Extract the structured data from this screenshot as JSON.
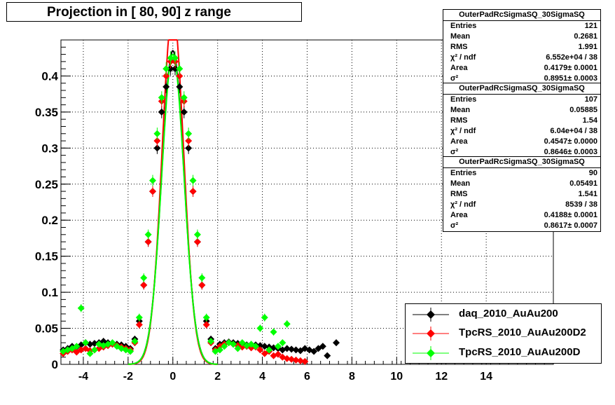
{
  "title": "Projection in [  80,  90] z range",
  "stats_boxes": [
    {
      "name": "OuterPadRcSigmaSQ_30SigmaSQ",
      "rows": [
        {
          "k": "Entries",
          "v": "121"
        },
        {
          "k": "Mean",
          "v": "0.2681"
        },
        {
          "k": "RMS",
          "v": "1.991"
        },
        {
          "k": "χ² / ndf",
          "v": "6.552e+04 / 38"
        },
        {
          "k": "Area",
          "v": "0.4179± 0.0001"
        },
        {
          "k": "σ²",
          "v": "0.8951± 0.0003"
        }
      ]
    },
    {
      "name": "OuterPadRcSigmaSQ_30SigmaSQ",
      "rows": [
        {
          "k": "Entries",
          "v": "107"
        },
        {
          "k": "Mean",
          "v": "0.05885"
        },
        {
          "k": "RMS",
          "v": "1.54"
        },
        {
          "k": "χ² / ndf",
          "v": "6.04e+04 / 38"
        },
        {
          "k": "Area",
          "v": "0.4547± 0.0000"
        },
        {
          "k": "σ²",
          "v": "0.8646± 0.0003"
        }
      ]
    },
    {
      "name": "OuterPadRcSigmaSQ_30SigmaSQ",
      "rows": [
        {
          "k": "Entries",
          "v": "90"
        },
        {
          "k": "Mean",
          "v": "0.05491"
        },
        {
          "k": "RMS",
          "v": "1.541"
        },
        {
          "k": "χ² / ndf",
          "v": "8539 / 38"
        },
        {
          "k": "Area",
          "v": "0.4188± 0.0001"
        },
        {
          "k": "σ²",
          "v": "0.8617± 0.0007"
        }
      ]
    }
  ],
  "legend": [
    {
      "label": "daq_2010_AuAu200",
      "color": "#000000"
    },
    {
      "label": "TpcRS_2010_AuAu200D2",
      "color": "#ff0000"
    },
    {
      "label": "TpcRS_2010_AuAu200D",
      "color": "#00ff00"
    }
  ],
  "chart_data": {
    "type": "scatter",
    "xlim": [
      -5,
      17
    ],
    "ylim": [
      0,
      0.45
    ],
    "x_ticks": [
      -4,
      -2,
      0,
      2,
      4,
      6,
      8,
      10,
      12,
      14
    ],
    "y_ticks": [
      0,
      0.05,
      0.1,
      0.15,
      0.2,
      0.25,
      0.3,
      0.35,
      0.4
    ],
    "y_tick_labels": [
      "0",
      "0.05",
      "0.1",
      "0.15",
      "0.2",
      "0.25",
      "0.3",
      "0.35",
      "0.4"
    ],
    "grid": true,
    "series": [
      {
        "name": "daq_2010_AuAu200",
        "color": "#000000",
        "x": [
          -4.9,
          -4.7,
          -4.5,
          -4.3,
          -4.1,
          -3.9,
          -3.7,
          -3.5,
          -3.3,
          -3.1,
          -2.9,
          -2.7,
          -2.5,
          -2.3,
          -2.1,
          -1.9,
          -1.7,
          -1.5,
          -1.3,
          -1.1,
          -0.9,
          -0.7,
          -0.5,
          -0.3,
          -0.1,
          0.1,
          0.3,
          0.5,
          0.7,
          0.9,
          1.1,
          1.3,
          1.5,
          1.7,
          1.9,
          2.1,
          2.3,
          2.5,
          2.7,
          2.9,
          3.1,
          3.3,
          3.5,
          3.7,
          3.9,
          4.1,
          4.3,
          4.5,
          4.7,
          4.9,
          5.1,
          5.3,
          5.5,
          5.7,
          5.9,
          6.1,
          6.3,
          6.5,
          6.7,
          6.9,
          7.3
        ],
        "y": [
          0.02,
          0.022,
          0.025,
          0.024,
          0.027,
          0.03,
          0.028,
          0.029,
          0.03,
          0.032,
          0.03,
          0.029,
          0.028,
          0.027,
          0.025,
          0.022,
          0.035,
          0.06,
          0.11,
          0.17,
          0.24,
          0.3,
          0.35,
          0.385,
          0.41,
          0.41,
          0.385,
          0.35,
          0.3,
          0.24,
          0.17,
          0.11,
          0.06,
          0.035,
          0.022,
          0.028,
          0.03,
          0.031,
          0.03,
          0.029,
          0.028,
          0.027,
          0.026,
          0.027,
          0.026,
          0.025,
          0.024,
          0.023,
          0.022,
          0.02,
          0.022,
          0.021,
          0.02,
          0.019,
          0.022,
          0.02,
          0.018,
          0.022,
          0.025,
          0.012,
          0.03
        ]
      },
      {
        "name": "TpcRS_2010_AuAu200D2",
        "color": "#ff0000",
        "x": [
          -4.9,
          -4.7,
          -4.5,
          -4.3,
          -4.1,
          -3.9,
          -3.7,
          -3.5,
          -3.3,
          -3.1,
          -2.9,
          -2.7,
          -2.5,
          -2.3,
          -2.1,
          -1.9,
          -1.7,
          -1.5,
          -1.3,
          -1.1,
          -0.9,
          -0.7,
          -0.5,
          -0.3,
          -0.1,
          0.1,
          0.3,
          0.5,
          0.7,
          0.9,
          1.1,
          1.3,
          1.5,
          1.7,
          1.9,
          2.1,
          2.3,
          2.5,
          2.7,
          2.9,
          3.1,
          3.3,
          3.5,
          3.7,
          3.9,
          4.1,
          4.3,
          4.5,
          4.7,
          4.9,
          5.1,
          5.3,
          5.5,
          5.7,
          5.9
        ],
        "y": [
          0.015,
          0.018,
          0.02,
          0.017,
          0.02,
          0.022,
          0.019,
          0.02,
          0.022,
          0.024,
          0.026,
          0.028,
          0.026,
          0.024,
          0.022,
          0.02,
          0.03,
          0.055,
          0.11,
          0.17,
          0.24,
          0.31,
          0.365,
          0.4,
          0.42,
          0.42,
          0.4,
          0.365,
          0.31,
          0.24,
          0.17,
          0.11,
          0.055,
          0.03,
          0.02,
          0.025,
          0.028,
          0.03,
          0.028,
          0.026,
          0.024,
          0.025,
          0.023,
          0.024,
          0.02,
          0.015,
          0.018,
          0.012,
          0.014,
          0.01,
          0.008,
          0.007,
          0.006,
          0.005,
          0.004
        ]
      },
      {
        "name": "TpcRS_2010_AuAu200D",
        "color": "#00ff00",
        "x": [
          -4.9,
          -4.7,
          -4.5,
          -4.3,
          -4.1,
          -3.9,
          -3.7,
          -3.5,
          -3.3,
          -3.1,
          -2.9,
          -2.7,
          -2.5,
          -2.3,
          -2.1,
          -1.9,
          -1.7,
          -1.5,
          -1.3,
          -1.1,
          -0.9,
          -0.7,
          -0.5,
          -0.3,
          -0.1,
          0.1,
          0.3,
          0.5,
          0.7,
          0.9,
          1.1,
          1.3,
          1.5,
          1.7,
          1.9,
          2.1,
          2.3,
          2.5,
          2.7,
          2.9,
          3.1,
          3.3,
          3.5,
          3.7,
          3.9,
          4.1,
          4.3,
          4.5,
          4.7,
          4.9,
          5.1
        ],
        "y": [
          0.018,
          0.02,
          0.022,
          0.025,
          0.078,
          0.03,
          0.015,
          0.02,
          0.028,
          0.026,
          0.028,
          0.03,
          0.025,
          0.022,
          0.02,
          0.018,
          0.032,
          0.065,
          0.12,
          0.18,
          0.255,
          0.32,
          0.37,
          0.41,
          0.425,
          0.425,
          0.41,
          0.37,
          0.32,
          0.255,
          0.18,
          0.12,
          0.065,
          0.032,
          0.018,
          0.02,
          0.025,
          0.03,
          0.028,
          0.022,
          0.03,
          0.026,
          0.028,
          0.025,
          0.05,
          0.065,
          0.02,
          0.045,
          0.025,
          0.03,
          0.056
        ]
      }
    ]
  }
}
